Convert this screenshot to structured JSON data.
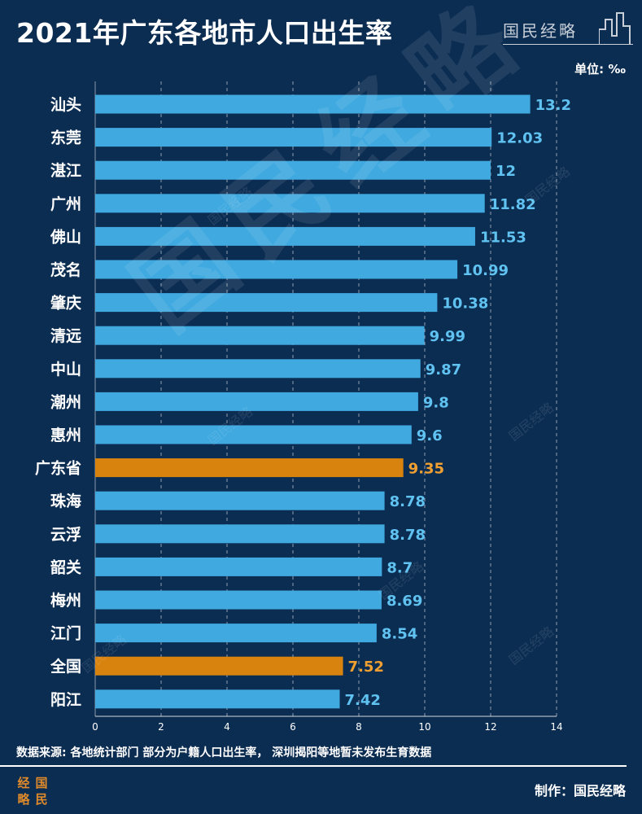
{
  "header": {
    "title": "2021年广东各地市人口出生率",
    "brand": "国民经略",
    "unit": "单位: ‰"
  },
  "footer": {
    "source": "数据来源: 各地统计部门 部分为户籍人口出生率， 深圳揭阳等地暂未发布生育数据",
    "made_by": "制作：国民经略",
    "logo_chars": [
      "经",
      "国",
      "略",
      "民"
    ]
  },
  "watermark": {
    "large": "国民经略",
    "small": "国民经略"
  },
  "colors": {
    "background": "#0c2d52",
    "bar": "#3fa9e0",
    "bar_highlight": "#d9830f",
    "value_label": "#5fc2f0",
    "value_label_highlight": "#f0a030",
    "grid": "#ffffff"
  },
  "chart_data": {
    "type": "bar",
    "orientation": "horizontal",
    "categories": [
      "汕头",
      "东莞",
      "湛江",
      "广州",
      "佛山",
      "茂名",
      "肇庆",
      "清远",
      "中山",
      "潮州",
      "惠州",
      "广东省",
      "珠海",
      "云浮",
      "韶关",
      "梅州",
      "江门",
      "全国",
      "阳江"
    ],
    "values": [
      13.2,
      12.03,
      12,
      11.82,
      11.53,
      10.99,
      10.38,
      9.99,
      9.87,
      9.8,
      9.6,
      9.35,
      8.78,
      8.78,
      8.7,
      8.69,
      8.54,
      7.52,
      7.42
    ],
    "value_labels": [
      "13.2",
      "12.03",
      "12",
      "11.82",
      "11.53",
      "10.99",
      "10.38",
      "9.99",
      "9.87",
      "9.8",
      "9.6",
      "9.35",
      "8.78",
      "8.78",
      "8.7",
      "8.69",
      "8.54",
      "7.52",
      "7.42"
    ],
    "highlighted": [
      "广东省",
      "全国"
    ],
    "xlim": [
      0,
      14
    ],
    "xticks": [
      "0",
      "2",
      "4",
      "6",
      "8",
      "10",
      "12",
      "14"
    ],
    "grid": "vertical dashed",
    "legend": "none"
  }
}
